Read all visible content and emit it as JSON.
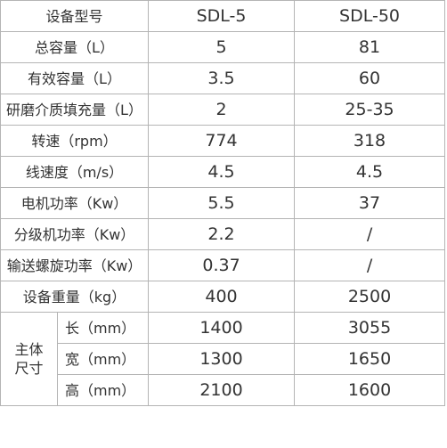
{
  "table": {
    "header": [
      "设备型号",
      "SDL-5",
      "SDL-50"
    ],
    "rows": [
      [
        "总容量（L）",
        "5",
        "81"
      ],
      [
        "有效容量（L）",
        "3.5",
        "60"
      ],
      [
        "研磨介质填充量（L）",
        "2",
        "25-35"
      ],
      [
        "转速（rpm）",
        "774",
        "318"
      ],
      [
        "线速度（m/s）",
        "4.5",
        "4.5"
      ],
      [
        "电机功率（Kw）",
        "5.5",
        "37"
      ],
      [
        "分级机功率（Kw）",
        "2.2",
        "/"
      ],
      [
        "输送螺旋功率（Kw）",
        "0.37",
        "/"
      ],
      [
        "设备重量（kg）",
        "400",
        "2500"
      ]
    ],
    "group": {
      "label_lines": [
        "主体",
        "尺寸"
      ],
      "rows": [
        [
          "长（mm）",
          "1400",
          "3055"
        ],
        [
          "宽（mm）",
          "1300",
          "1650"
        ],
        [
          "高（mm）",
          "2100",
          "1600"
        ]
      ]
    }
  }
}
